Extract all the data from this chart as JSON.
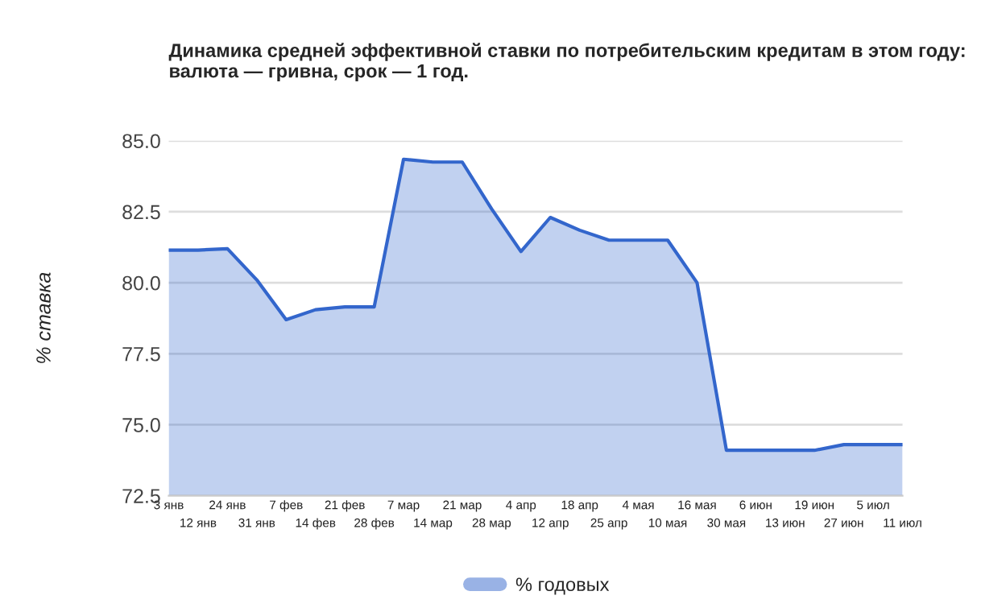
{
  "chart_data": {
    "type": "area",
    "title": "Динамика средней эффективной ставки по потребительским кредитам в этом году: валюта — гривна, срок — 1 год.",
    "ylabel": "% ставка",
    "categories": [
      "3 янв",
      "12 янв",
      "24 янв",
      "31 янв",
      "7 фев",
      "14 фев",
      "21 фев",
      "28 фев",
      "7 мар",
      "14 мар",
      "21 мар",
      "28 мар",
      "4 апр",
      "12 апр",
      "18 апр",
      "25 апр",
      "4 мая",
      "10 мая",
      "16 мая",
      "30 мая",
      "6 июн",
      "13 июн",
      "19 июн",
      "27 июн",
      "5 июл",
      "11 июл"
    ],
    "series": [
      {
        "name": "% годовых",
        "color": "#3366cc",
        "values": [
          81.15,
          81.15,
          81.2,
          80.1,
          78.7,
          79.05,
          79.15,
          79.15,
          84.35,
          84.25,
          84.25,
          82.6,
          81.1,
          82.3,
          81.85,
          81.5,
          81.5,
          81.5,
          80.0,
          74.1,
          74.1,
          74.1,
          74.1,
          74.3,
          74.3,
          74.3
        ]
      }
    ],
    "ylim": [
      72.5,
      85.0
    ],
    "yticks": [
      {
        "value": 72.5,
        "label": "72.5"
      },
      {
        "value": 75,
        "label": "75.0"
      },
      {
        "value": 77.5,
        "label": "77.5"
      },
      {
        "value": 80,
        "label": "80.0"
      },
      {
        "value": 82.5,
        "label": "82.5"
      },
      {
        "value": 85,
        "label": "85.0"
      }
    ],
    "grid": "y",
    "legend": "bottom"
  }
}
